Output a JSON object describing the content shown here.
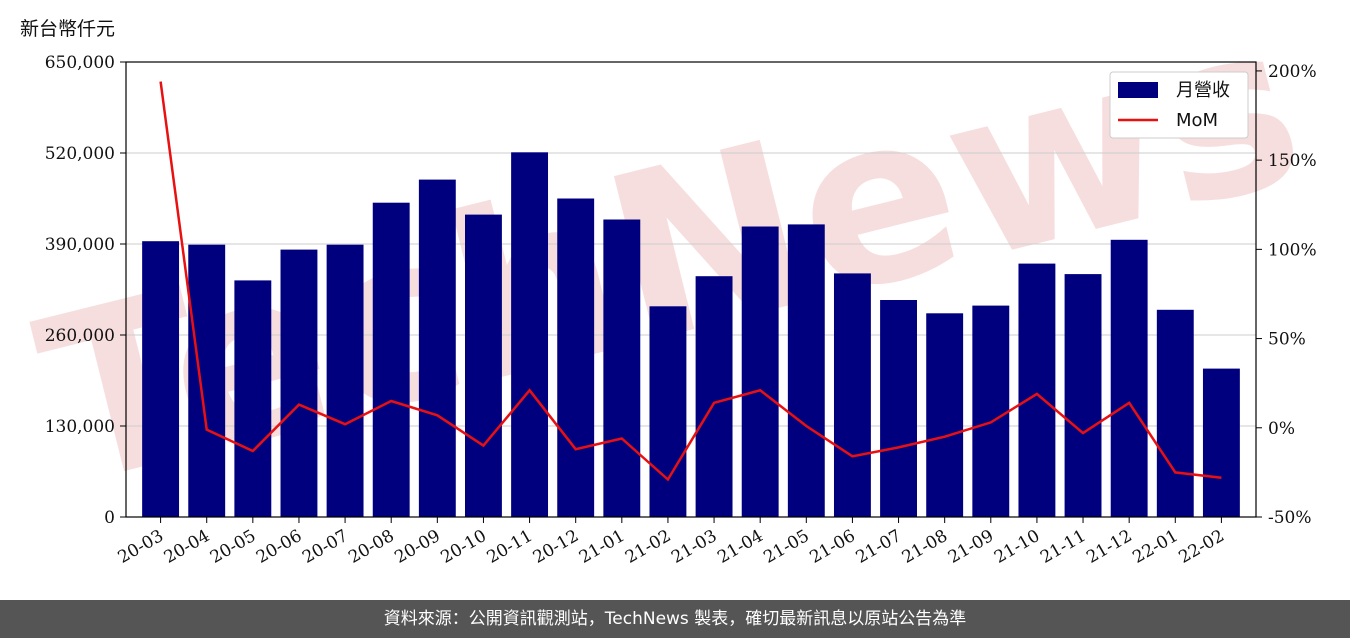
{
  "unit_label": "新台幣仟元",
  "footer": "資料來源：公開資訊觀測站，TechNews 製表，確切最新訊息以原站公告為準",
  "watermark": "TechNews",
  "colors": {
    "bar": "#00007f",
    "line": "#e81010",
    "grid": "#cccccc",
    "footer_bg": "#555555"
  },
  "chart_data": {
    "type": "bar",
    "categories": [
      "20-03",
      "20-04",
      "20-05",
      "20-06",
      "20-07",
      "20-08",
      "20-09",
      "20-10",
      "20-11",
      "20-12",
      "21-01",
      "21-02",
      "21-03",
      "21-04",
      "21-05",
      "21-06",
      "21-07",
      "21-08",
      "21-09",
      "21-10",
      "21-11",
      "21-12",
      "22-01",
      "22-02"
    ],
    "series": [
      {
        "name": "月營收",
        "type": "bar",
        "axis": "left",
        "values": [
          394000,
          389000,
          338000,
          382000,
          389000,
          449000,
          482000,
          432000,
          521000,
          455000,
          425000,
          301000,
          344000,
          415000,
          418000,
          348000,
          310000,
          291000,
          302000,
          362000,
          347000,
          396000,
          296000,
          212000
        ]
      },
      {
        "name": "MoM",
        "type": "line",
        "axis": "right",
        "unit": "%",
        "values": [
          194,
          -1,
          -13,
          13,
          2,
          15,
          7,
          -10,
          21,
          -12,
          -6,
          -29,
          14,
          21,
          1,
          -16,
          -11,
          -5,
          3,
          19,
          -3,
          14,
          -25,
          -28
        ]
      }
    ],
    "left_axis": {
      "ylim": [
        0,
        650000
      ],
      "ticks": [
        0,
        130000,
        260000,
        390000,
        520000,
        650000
      ],
      "tick_labels": [
        "0",
        "130,000",
        "260,000",
        "390,000",
        "520,000",
        "650,000"
      ]
    },
    "right_axis": {
      "ylim": [
        -50,
        205
      ],
      "ticks": [
        -50,
        0,
        50,
        100,
        150,
        200
      ],
      "tick_labels": [
        "-50%",
        "0%",
        "50%",
        "100%",
        "150%",
        "200%"
      ]
    },
    "grid": true,
    "legend_position": "top-right"
  }
}
